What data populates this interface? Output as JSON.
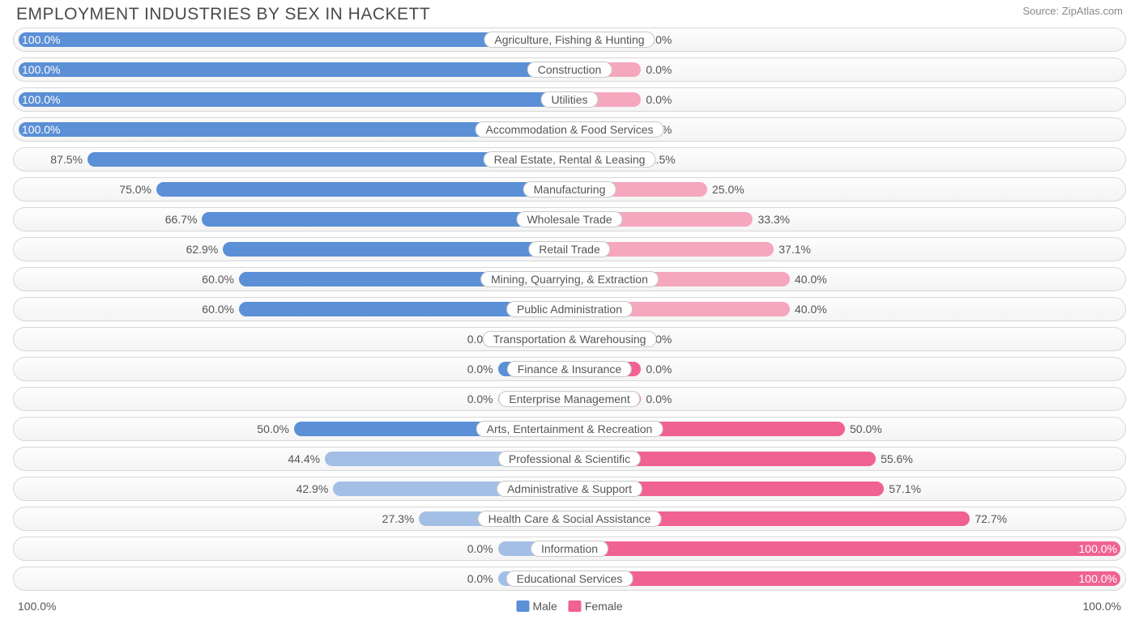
{
  "title": "EMPLOYMENT INDUSTRIES BY SEX IN HACKETT",
  "source": "Source: ZipAtlas.com",
  "colors": {
    "male_strong": "#5b8fd6",
    "male_weak": "#a3bfe5",
    "female_strong": "#f06292",
    "female_weak": "#f5a7bd",
    "text": "#555555",
    "white": "#ffffff"
  },
  "axis": {
    "left": "100.0%",
    "right": "100.0%"
  },
  "legend": [
    {
      "label": "Male",
      "swatch": "#5b8fd6"
    },
    {
      "label": "Female",
      "swatch": "#f06292"
    }
  ],
  "half_width_base": 50,
  "min_bar_pct": 13,
  "rows": [
    {
      "label": "Agriculture, Fishing & Hunting",
      "male": 100.0,
      "female": 0.0
    },
    {
      "label": "Construction",
      "male": 100.0,
      "female": 0.0
    },
    {
      "label": "Utilities",
      "male": 100.0,
      "female": 0.0
    },
    {
      "label": "Accommodation & Food Services",
      "male": 100.0,
      "female": 0.0
    },
    {
      "label": "Real Estate, Rental & Leasing",
      "male": 87.5,
      "female": 12.5
    },
    {
      "label": "Manufacturing",
      "male": 75.0,
      "female": 25.0
    },
    {
      "label": "Wholesale Trade",
      "male": 66.7,
      "female": 33.3
    },
    {
      "label": "Retail Trade",
      "male": 62.9,
      "female": 37.1
    },
    {
      "label": "Mining, Quarrying, & Extraction",
      "male": 60.0,
      "female": 40.0
    },
    {
      "label": "Public Administration",
      "male": 60.0,
      "female": 40.0
    },
    {
      "label": "Transportation & Warehousing",
      "male": 0.0,
      "female": 0.0
    },
    {
      "label": "Finance & Insurance",
      "male": 0.0,
      "female": 0.0
    },
    {
      "label": "Enterprise Management",
      "male": 0.0,
      "female": 0.0
    },
    {
      "label": "Arts, Entertainment & Recreation",
      "male": 50.0,
      "female": 50.0
    },
    {
      "label": "Professional & Scientific",
      "male": 44.4,
      "female": 55.6
    },
    {
      "label": "Administrative & Support",
      "male": 42.9,
      "female": 57.1
    },
    {
      "label": "Health Care & Social Assistance",
      "male": 27.3,
      "female": 72.7
    },
    {
      "label": "Information",
      "male": 0.0,
      "female": 100.0
    },
    {
      "label": "Educational Services",
      "male": 0.0,
      "female": 100.0
    }
  ]
}
